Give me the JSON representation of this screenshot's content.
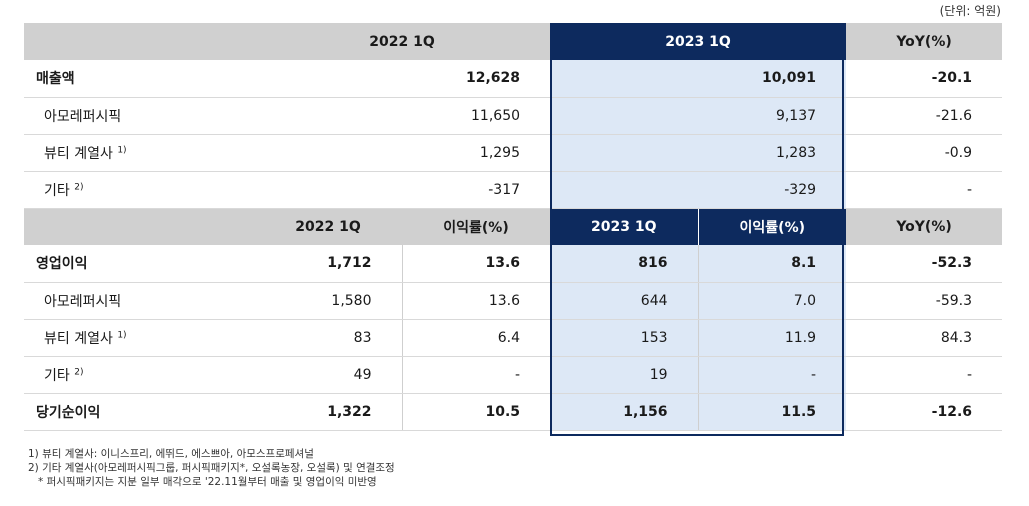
{
  "unit_label": "(단위: 억원)",
  "top_header": {
    "col1": "2022 1Q",
    "col2": "2023 1Q",
    "col3": "YoY(%)"
  },
  "sales_rows": [
    {
      "label": "매출액",
      "note": "",
      "v2022": "12,628",
      "v2023": "10,091",
      "yoy": "-20.1"
    },
    {
      "label": "아모레퍼시픽",
      "note": "",
      "v2022": "11,650",
      "v2023": "9,137",
      "yoy": "-21.6"
    },
    {
      "label": "뷰티 계열사",
      "note": "1)",
      "v2022": "1,295",
      "v2023": "1,283",
      "yoy": "-0.9"
    },
    {
      "label": "기타",
      "note": "2)",
      "v2022": "-317",
      "v2023": "-329",
      "yoy": "-"
    }
  ],
  "mid_header": {
    "c1": "2022 1Q",
    "c2": "이익률(%)",
    "c3": "2023 1Q",
    "c4": "이익률(%)",
    "c5": "YoY(%)"
  },
  "profit_rows": [
    {
      "label": "영업이익",
      "note": "",
      "v2022": "1,712",
      "m2022": "13.6",
      "v2023": "816",
      "m2023": "8.1",
      "yoy": "-52.3"
    },
    {
      "label": "아모레퍼시픽",
      "note": "",
      "v2022": "1,580",
      "m2022": "13.6",
      "v2023": "644",
      "m2023": "7.0",
      "yoy": "-59.3"
    },
    {
      "label": "뷰티 계열사",
      "note": "1)",
      "v2022": "83",
      "m2022": "6.4",
      "v2023": "153",
      "m2023": "11.9",
      "yoy": "84.3"
    },
    {
      "label": "기타",
      "note": "2)",
      "v2022": "49",
      "m2022": "-",
      "v2023": "19",
      "m2023": "-",
      "yoy": "-"
    },
    {
      "label": "당기순이익",
      "note": "",
      "v2022": "1,322",
      "m2022": "10.5",
      "v2023": "1,156",
      "m2023": "11.5",
      "yoy": "-12.6"
    }
  ],
  "footnotes": [
    "1) 뷰티 계열사: 이니스프리, 에뛰드, 에스쁘아, 아모스프로페셔널",
    "2) 기타 계열사(아모레퍼시픽그룹, 퍼시픽패키지*, 오설록농장, 오설록) 및 연결조정",
    "* 퍼시픽패키지는 지분 일부 매각으로 '22.11월부터 매출 및 영업이익 미반영"
  ],
  "colors": {
    "highlight_header": "#0d2a5e",
    "highlight_cell": "#dde8f6",
    "header_gray": "#d0d0d0"
  }
}
